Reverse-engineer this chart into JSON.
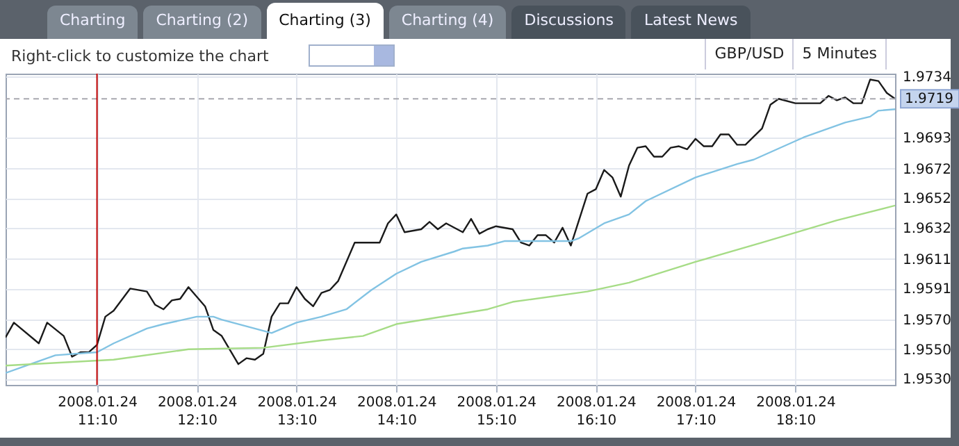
{
  "chart_data": {
    "type": "line",
    "annotations": [
      "Charting",
      "Charting (2)",
      "Charting (3)",
      "Charting (4)",
      "Discussions",
      "Latest News",
      "Right-click to customize the chart",
      "GBP/USD",
      "5 Minutes"
    ],
    "xlim": [
      "2008-01-24T10:15",
      "2008-01-24T19:10"
    ],
    "xticks": [
      {
        "value": "2008-01-24T11:10",
        "label": "2008.01.24\n11:10"
      },
      {
        "value": "2008-01-24T12:10",
        "label": "2008.01.24\n12:10"
      },
      {
        "value": "2008-01-24T13:10",
        "label": "2008.01.24\n13:10"
      },
      {
        "value": "2008-01-24T14:10",
        "label": "2008.01.24\n14:10"
      },
      {
        "value": "2008-01-24T15:10",
        "label": "2008.01.24\n15:10"
      },
      {
        "value": "2008-01-24T16:10",
        "label": "2008.01.24\n16:10"
      },
      {
        "value": "2008-01-24T17:10",
        "label": "2008.01.24\n17:10"
      },
      {
        "value": "2008-01-24T18:10",
        "label": "2008.01.24\n18:10"
      }
    ],
    "ylim": [
      1.9526,
      1.9736
    ],
    "yticks": [
      {
        "value": 1.953,
        "label": "1.9530"
      },
      {
        "value": 1.955,
        "label": "1.9550"
      },
      {
        "value": 1.957,
        "label": "1.9570"
      },
      1.9591,
      1.9611,
      1.9632,
      1.9652,
      1.9672,
      1.9693,
      1.9734
    ],
    "grid": true,
    "series": [
      {
        "color": "#1a1a1a",
        "x": [
          "2008-01-24T10:15",
          "2008-01-24T10:20",
          "2008-01-24T10:35",
          "2008-01-24T10:40",
          "2008-01-24T10:50",
          "2008-01-24T10:55",
          "2008-01-24T11:00",
          "2008-01-24T11:05",
          "2008-01-24T11:10",
          "2008-01-24T11:15",
          "2008-01-24T11:20",
          "2008-01-24T11:30",
          "2008-01-24T11:40",
          "2008-01-24T11:45",
          "2008-01-24T11:50",
          "2008-01-24T11:55",
          "2008-01-24T12:00",
          "2008-01-24T12:05",
          "2008-01-24T12:15",
          "2008-01-24T12:20",
          "2008-01-24T12:25",
          "2008-01-24T12:35",
          "2008-01-24T12:40",
          "2008-01-24T12:45",
          "2008-01-24T12:50",
          "2008-01-24T12:55",
          "2008-01-24T13:00",
          "2008-01-24T13:05",
          "2008-01-24T13:10",
          "2008-01-24T13:15",
          "2008-01-24T13:20",
          "2008-01-24T13:25",
          "2008-01-24T13:30",
          "2008-01-24T13:35",
          "2008-01-24T13:45",
          "2008-01-24T14:00",
          "2008-01-24T14:05",
          "2008-01-24T14:10",
          "2008-01-24T14:15",
          "2008-01-24T14:25",
          "2008-01-24T14:30",
          "2008-01-24T14:35",
          "2008-01-24T14:40",
          "2008-01-24T14:50",
          "2008-01-24T14:55",
          "2008-01-24T15:00",
          "2008-01-24T15:05",
          "2008-01-24T15:10",
          "2008-01-24T15:20",
          "2008-01-24T15:25",
          "2008-01-24T15:30",
          "2008-01-24T15:35",
          "2008-01-24T15:40",
          "2008-01-24T15:45",
          "2008-01-24T15:50",
          "2008-01-24T15:55",
          "2008-01-24T16:05",
          "2008-01-24T16:10",
          "2008-01-24T16:15",
          "2008-01-24T16:20",
          "2008-01-24T16:25",
          "2008-01-24T16:30",
          "2008-01-24T16:35",
          "2008-01-24T16:40",
          "2008-01-24T16:45",
          "2008-01-24T16:50",
          "2008-01-24T16:55",
          "2008-01-24T17:00",
          "2008-01-24T17:05",
          "2008-01-24T17:10",
          "2008-01-24T17:15",
          "2008-01-24T17:20",
          "2008-01-24T17:25",
          "2008-01-24T17:30",
          "2008-01-24T17:35",
          "2008-01-24T17:40",
          "2008-01-24T17:50",
          "2008-01-24T17:55",
          "2008-01-24T18:00",
          "2008-01-24T18:10",
          "2008-01-24T18:15",
          "2008-01-24T18:25",
          "2008-01-24T18:30",
          "2008-01-24T18:35",
          "2008-01-24T18:40",
          "2008-01-24T18:45",
          "2008-01-24T18:50",
          "2008-01-24T18:55",
          "2008-01-24T19:00",
          "2008-01-24T19:05",
          "2008-01-24T19:10"
        ],
        "values": [
          1.9558,
          1.9568,
          1.9554,
          1.9568,
          1.9559,
          1.9545,
          1.9548,
          1.9548,
          1.9553,
          1.9572,
          1.9576,
          1.9591,
          1.9589,
          1.958,
          1.9577,
          1.9583,
          1.9584,
          1.9592,
          1.9579,
          1.9563,
          1.9559,
          1.954,
          1.9544,
          1.9543,
          1.9547,
          1.9572,
          1.9581,
          1.9581,
          1.9592,
          1.9584,
          1.9579,
          1.9588,
          1.959,
          1.9596,
          1.9622,
          1.9622,
          1.9635,
          1.9641,
          1.9629,
          1.9631,
          1.9636,
          1.9631,
          1.9635,
          1.9629,
          1.9638,
          1.9628,
          1.9631,
          1.9633,
          1.9631,
          1.9622,
          1.962,
          1.9627,
          1.9627,
          1.9622,
          1.9632,
          1.962,
          1.9655,
          1.9658,
          1.9671,
          1.9666,
          1.9653,
          1.9674,
          1.9686,
          1.9687,
          1.968,
          1.968,
          1.9686,
          1.9687,
          1.9685,
          1.9692,
          1.9687,
          1.9687,
          1.9695,
          1.9695,
          1.9688,
          1.9688,
          1.9699,
          1.9715,
          1.9719,
          1.9716,
          1.9716,
          1.9716,
          1.9721,
          1.9718,
          1.972,
          1.9716,
          1.9716,
          1.9732,
          1.9731,
          1.9723,
          1.9719
        ]
      },
      {
        "color": "#82c3e3",
        "x": [
          "2008-01-24T10:15",
          "2008-01-24T10:30",
          "2008-01-24T10:45",
          "2008-01-24T11:10",
          "2008-01-24T11:20",
          "2008-01-24T11:40",
          "2008-01-24T11:50",
          "2008-01-24T12:10",
          "2008-01-24T12:20",
          "2008-01-24T12:25",
          "2008-01-24T12:55",
          "2008-01-24T13:10",
          "2008-01-24T13:25",
          "2008-01-24T13:40",
          "2008-01-24T13:55",
          "2008-01-24T14:10",
          "2008-01-24T14:25",
          "2008-01-24T14:45",
          "2008-01-24T14:50",
          "2008-01-24T15:05",
          "2008-01-24T15:15",
          "2008-01-24T15:55",
          "2008-01-24T16:00",
          "2008-01-24T16:15",
          "2008-01-24T16:30",
          "2008-01-24T16:40",
          "2008-01-24T17:10",
          "2008-01-24T17:35",
          "2008-01-24T17:45",
          "2008-01-24T18:15",
          "2008-01-24T18:40",
          "2008-01-24T18:55",
          "2008-01-24T19:00",
          "2008-01-24T19:10"
        ],
        "values": [
          1.9534,
          1.954,
          1.9546,
          1.9548,
          1.9554,
          1.9564,
          1.9567,
          1.9572,
          1.9572,
          1.957,
          1.9561,
          1.9568,
          1.9572,
          1.9577,
          1.959,
          1.9601,
          1.9609,
          1.9616,
          1.9618,
          1.962,
          1.9623,
          1.9623,
          1.9625,
          1.9635,
          1.9641,
          1.965,
          1.9666,
          1.9675,
          1.9678,
          1.9693,
          1.9703,
          1.9707,
          1.9711,
          1.9712
        ]
      },
      {
        "color": "#a6dc86",
        "x": [
          "2008-01-24T10:15",
          "2008-01-24T11:20",
          "2008-01-24T12:05",
          "2008-01-24T12:50",
          "2008-01-24T13:25",
          "2008-01-24T13:50",
          "2008-01-24T14:10",
          "2008-01-24T15:05",
          "2008-01-24T15:20",
          "2008-01-24T16:05",
          "2008-01-24T16:30",
          "2008-01-24T17:10",
          "2008-01-24T17:50",
          "2008-01-24T18:35",
          "2008-01-24T19:10"
        ],
        "values": [
          1.9539,
          1.9543,
          1.955,
          1.9551,
          1.9556,
          1.9559,
          1.9567,
          1.9577,
          1.9582,
          1.9589,
          1.9595,
          1.9609,
          1.9622,
          1.9637,
          1.9647
        ]
      }
    ],
    "ref_lines": [
      {
        "axis": "y",
        "value": 1.9719,
        "label": "1.9719",
        "color": "#a8a8b0",
        "line_style": "dashed"
      },
      {
        "axis": "x",
        "value": "2008-01-24T11:10",
        "color": "#c00000"
      }
    ]
  }
}
